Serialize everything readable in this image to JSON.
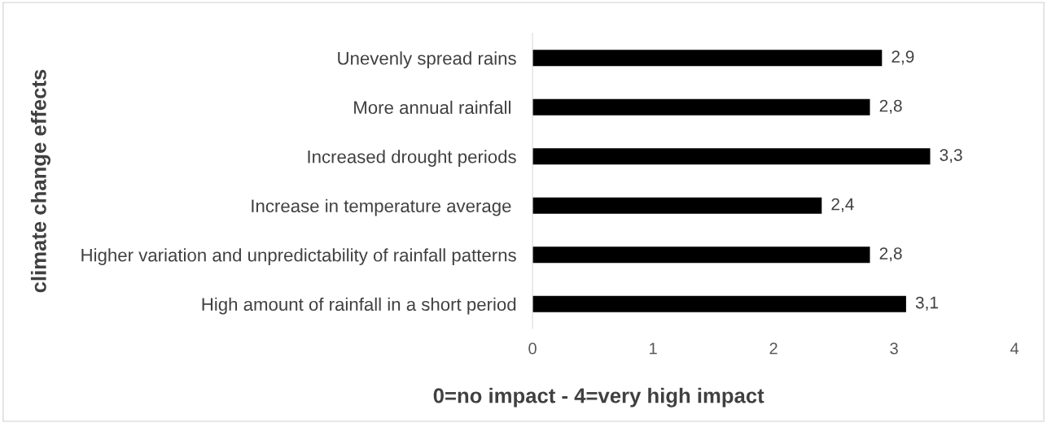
{
  "chart_data": {
    "type": "bar",
    "orientation": "horizontal",
    "categories": [
      "Unevenly spread rains",
      "More annual rainfall ",
      "Increased drought periods",
      "Increase in temperature average ",
      "Higher variation and unpredictability of rainfall patterns",
      "High amount of rainfall in a short period"
    ],
    "values": [
      2.9,
      2.8,
      3.3,
      2.4,
      2.8,
      3.1
    ],
    "value_labels": [
      "2,9",
      "2,8",
      "3,3",
      "2,4",
      "2,8",
      "3,1"
    ],
    "color": "#000000",
    "xlim": [
      0,
      4
    ],
    "xticks": [
      0,
      1,
      2,
      3,
      4
    ],
    "xlabel": "0=no impact - 4=very high impact",
    "ylabel": "climate change effects",
    "grid": false,
    "legend": false
  }
}
